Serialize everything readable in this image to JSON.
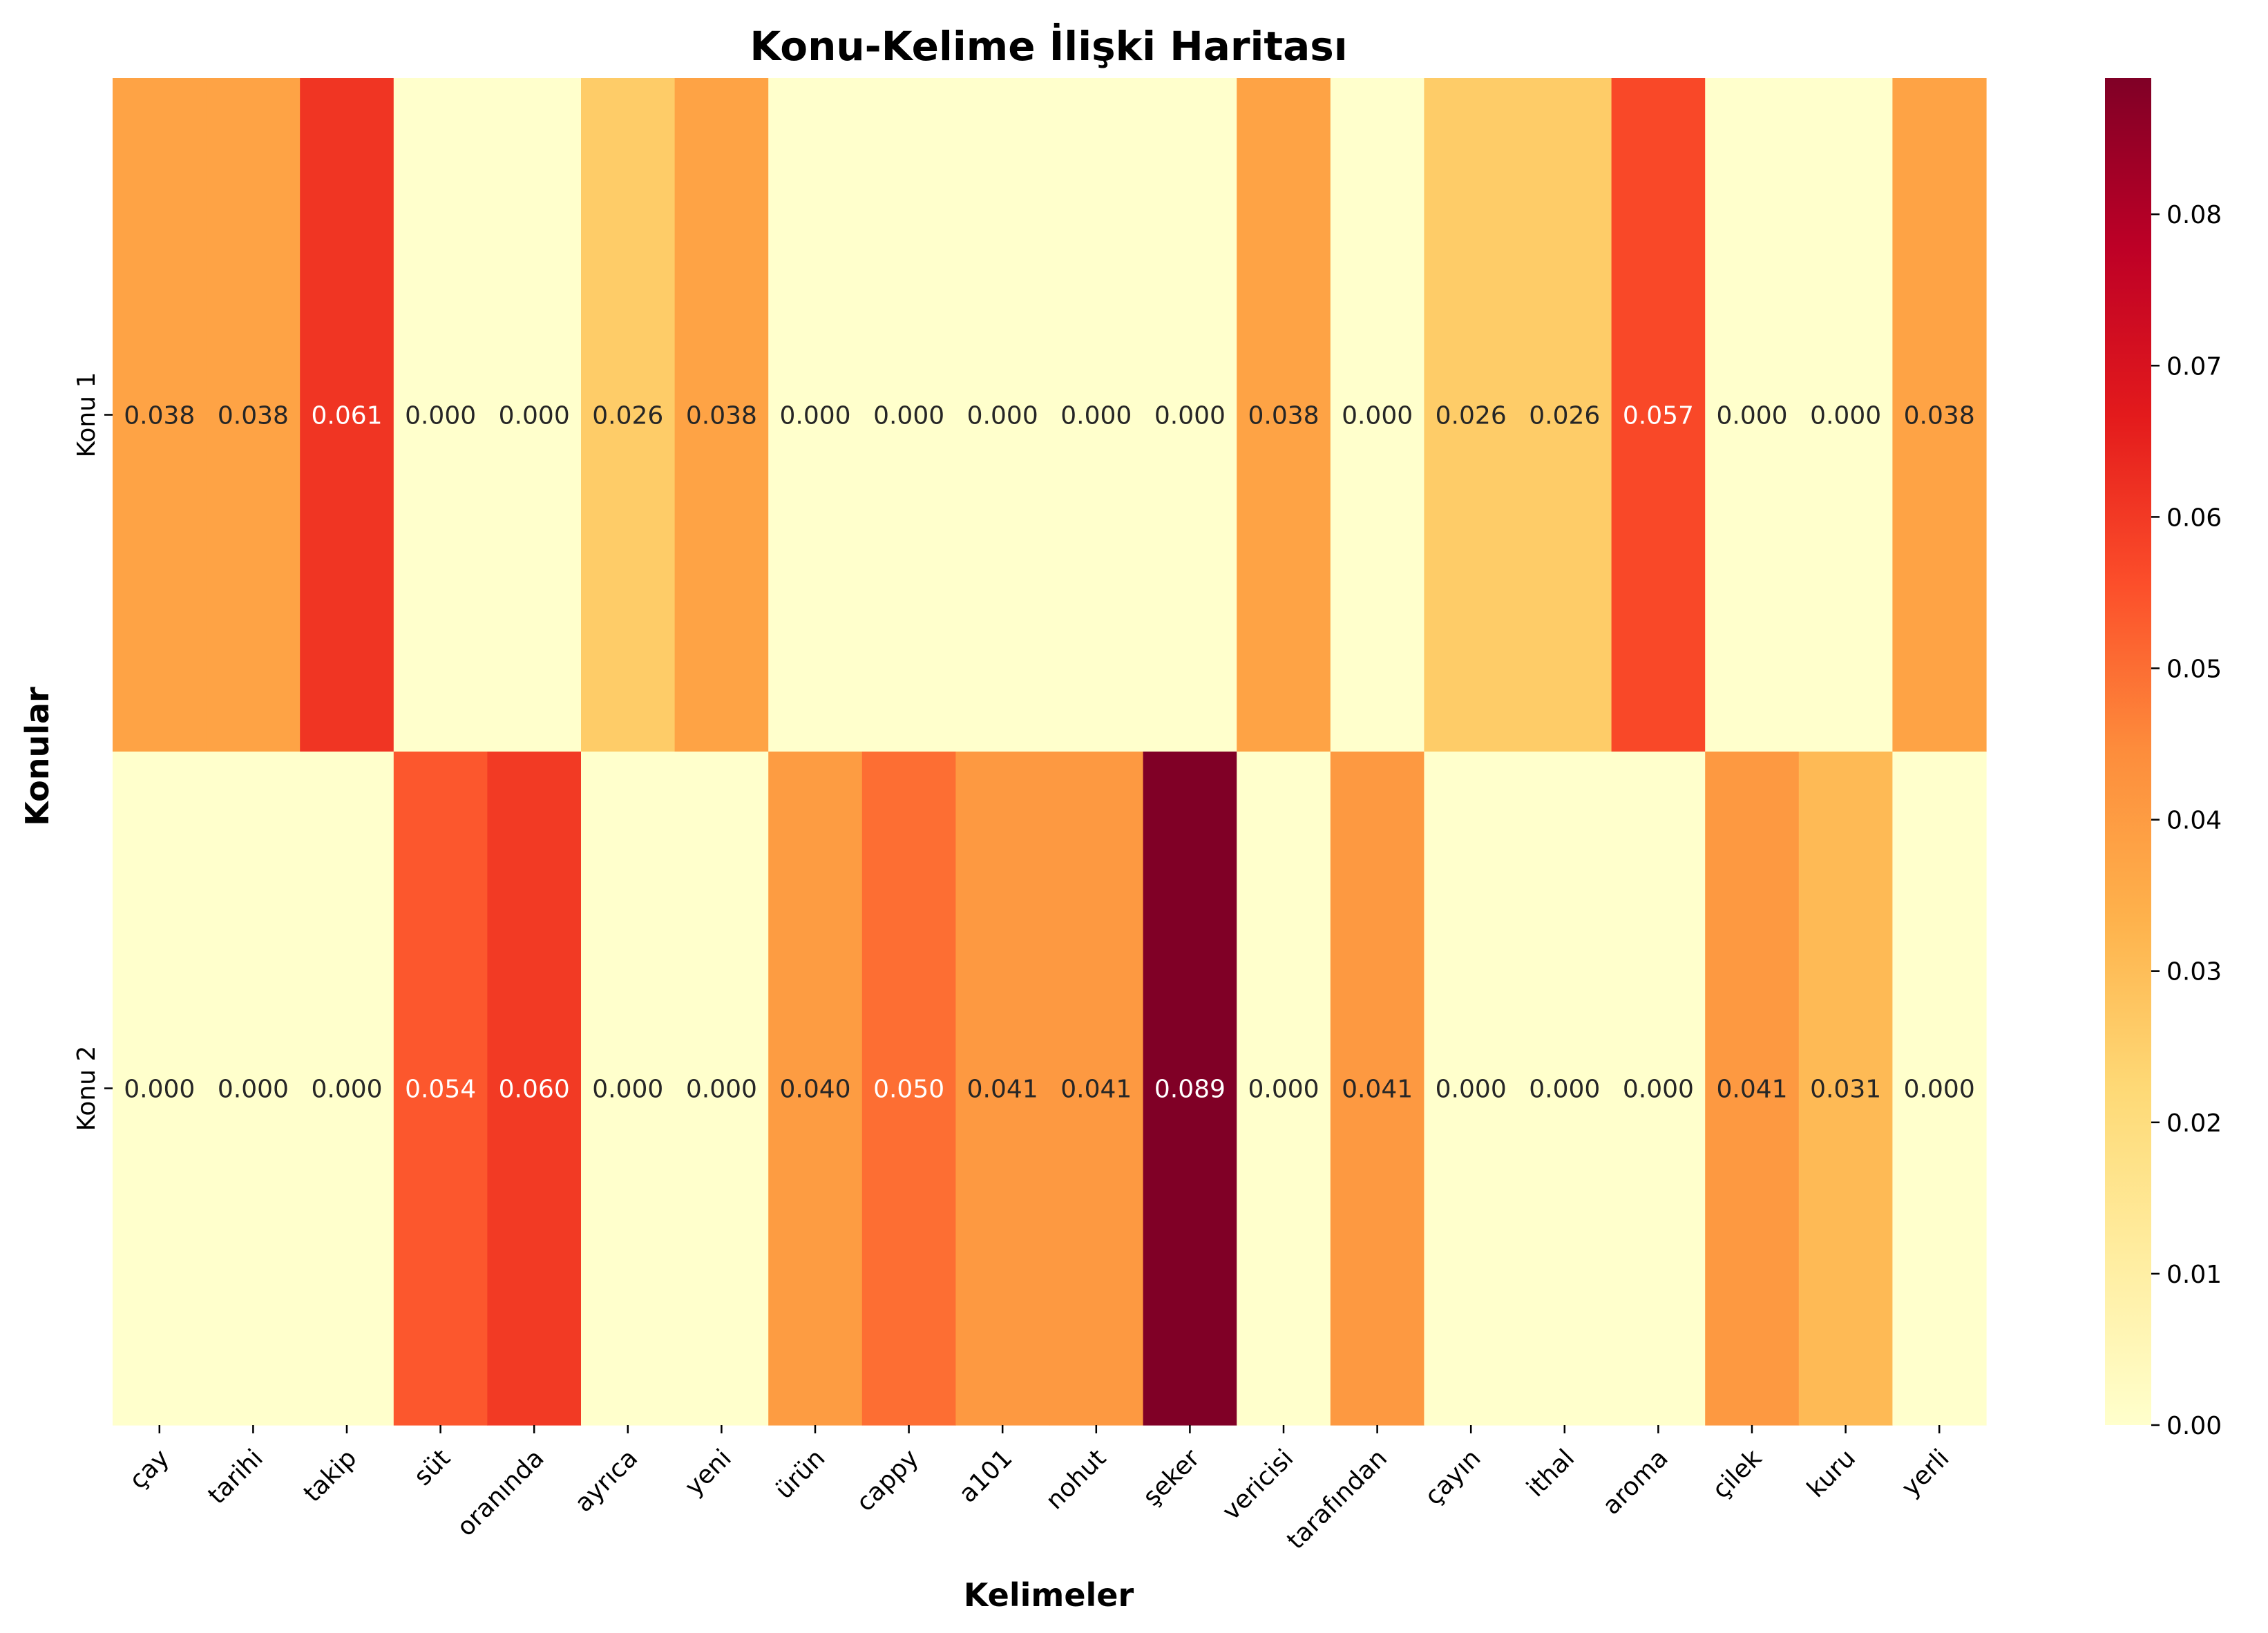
{
  "chart_data": {
    "type": "heatmap",
    "title": "Konu-Kelime İlişki Haritası",
    "xlabel": "Kelimeler",
    "ylabel": "Konular",
    "rows": [
      "Konu 1",
      "Konu 2"
    ],
    "columns": [
      "çay",
      "tarihi",
      "takip",
      "süt",
      "oranında",
      "ayrıca",
      "yeni",
      "ürün",
      "cappy",
      "a101",
      "nohut",
      "şeker",
      "vericisi",
      "tarafından",
      "çayın",
      "ithal",
      "aroma",
      "çilek",
      "kuru",
      "yerli"
    ],
    "values": [
      [
        0.038,
        0.038,
        0.061,
        0.0,
        0.0,
        0.026,
        0.038,
        0.0,
        0.0,
        0.0,
        0.0,
        0.0,
        0.038,
        0.0,
        0.026,
        0.026,
        0.057,
        0.0,
        0.0,
        0.038
      ],
      [
        0.0,
        0.0,
        0.0,
        0.054,
        0.06,
        0.0,
        0.0,
        0.04,
        0.05,
        0.041,
        0.041,
        0.089,
        0.0,
        0.041,
        0.0,
        0.0,
        0.0,
        0.041,
        0.031,
        0.0
      ]
    ],
    "value_labels": [
      [
        "0.038",
        "0.038",
        "0.061",
        "0.000",
        "0.000",
        "0.026",
        "0.038",
        "0.000",
        "0.000",
        "0.000",
        "0.000",
        "0.000",
        "0.038",
        "0.000",
        "0.026",
        "0.026",
        "0.057",
        "0.000",
        "0.000",
        "0.038"
      ],
      [
        "0.000",
        "0.000",
        "0.000",
        "0.054",
        "0.060",
        "0.000",
        "0.000",
        "0.040",
        "0.050",
        "0.041",
        "0.041",
        "0.089",
        "0.000",
        "0.041",
        "0.000",
        "0.000",
        "0.000",
        "0.041",
        "0.031",
        "0.000"
      ]
    ],
    "colormap": "YlOrRd",
    "colormap_stops": [
      "#ffffcc",
      "#ffeda0",
      "#fed976",
      "#feb24c",
      "#fd8d3c",
      "#fc4e2a",
      "#e31a1c",
      "#bd0026",
      "#800026"
    ],
    "color_range": [
      0,
      0.089
    ],
    "colorbar_ticks": [
      "0.00",
      "0.01",
      "0.02",
      "0.03",
      "0.04",
      "0.05",
      "0.06",
      "0.07",
      "0.08"
    ],
    "colorbar_tick_values": [
      0,
      0.01,
      0.02,
      0.03,
      0.04,
      0.05,
      0.06,
      0.07,
      0.08
    ],
    "text_color_dark": "#262626",
    "text_color_light": "#ffffff"
  }
}
